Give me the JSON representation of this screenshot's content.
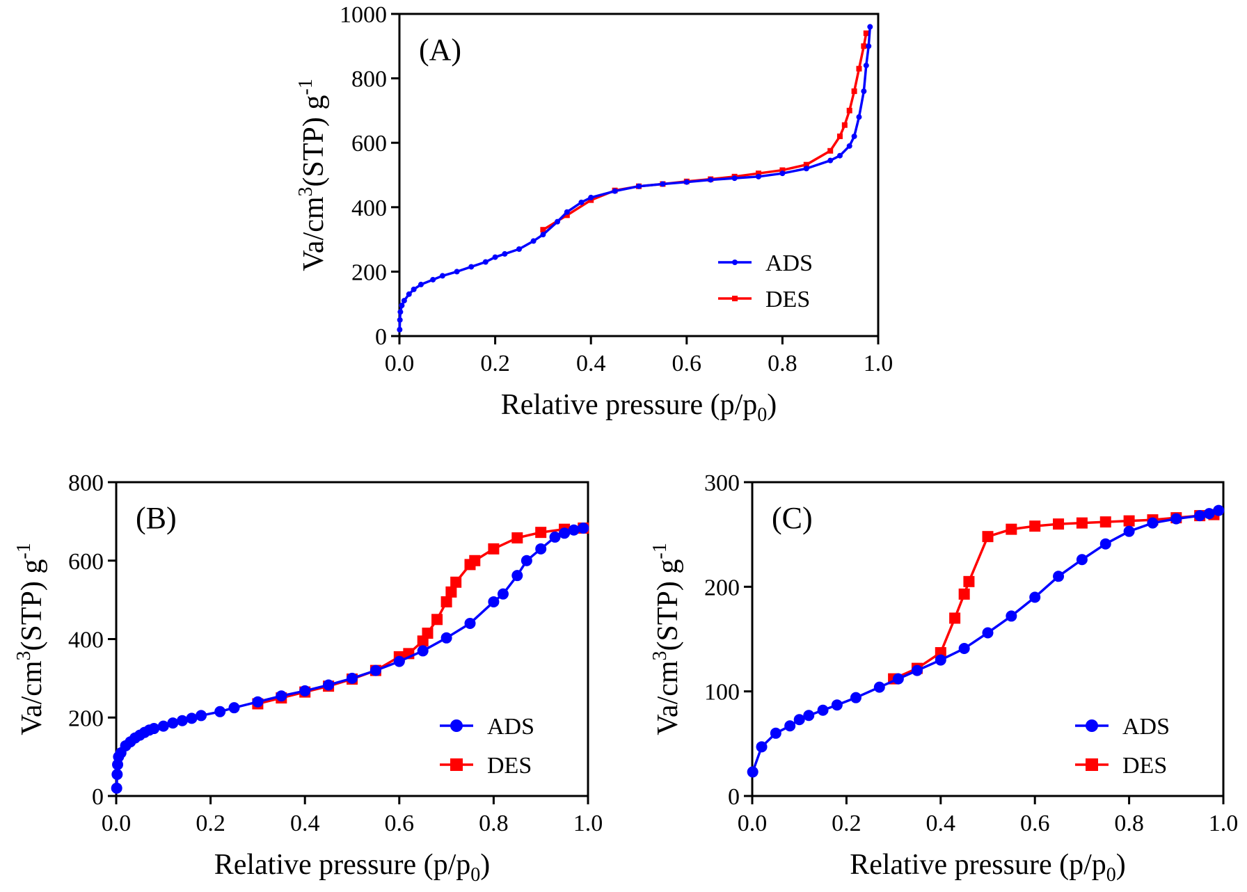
{
  "chart_data": [
    {
      "type": "line",
      "panel_label": "(A)",
      "xlabel": "Relative pressure (p/p",
      "xlabel_sub": "0",
      "xlabel_tail": ")",
      "ylabel": "Va/cm",
      "ylabel_sup": "3",
      "ylabel_mid": "(STP) g",
      "ylabel_sup2": "-1",
      "xlim": [
        0,
        1.0
      ],
      "ylim": [
        0,
        1000
      ],
      "xticks": [
        "0.0",
        "0.2",
        "0.4",
        "0.6",
        "0.8",
        "1.0"
      ],
      "yticks": [
        "0",
        "200",
        "400",
        "600",
        "800",
        "1000"
      ],
      "legend_position": "bottom-right",
      "series": [
        {
          "name": "ADS",
          "color": "#0000ff",
          "marker": "circle",
          "points": [
            [
              0.0005,
              20
            ],
            [
              0.001,
              50
            ],
            [
              0.002,
              75
            ],
            [
              0.005,
              95
            ],
            [
              0.01,
              110
            ],
            [
              0.02,
              130
            ],
            [
              0.03,
              145
            ],
            [
              0.045,
              160
            ],
            [
              0.07,
              175
            ],
            [
              0.09,
              187
            ],
            [
              0.12,
              200
            ],
            [
              0.15,
              215
            ],
            [
              0.18,
              230
            ],
            [
              0.2,
              245
            ],
            [
              0.22,
              255
            ],
            [
              0.25,
              270
            ],
            [
              0.28,
              295
            ],
            [
              0.3,
              315
            ],
            [
              0.33,
              355
            ],
            [
              0.35,
              385
            ],
            [
              0.38,
              415
            ],
            [
              0.4,
              430
            ],
            [
              0.45,
              450
            ],
            [
              0.5,
              465
            ],
            [
              0.55,
              472
            ],
            [
              0.6,
              478
            ],
            [
              0.65,
              485
            ],
            [
              0.7,
              490
            ],
            [
              0.75,
              495
            ],
            [
              0.8,
              505
            ],
            [
              0.85,
              520
            ],
            [
              0.9,
              545
            ],
            [
              0.92,
              560
            ],
            [
              0.94,
              590
            ],
            [
              0.95,
              620
            ],
            [
              0.96,
              680
            ],
            [
              0.97,
              760
            ],
            [
              0.975,
              840
            ],
            [
              0.98,
              900
            ],
            [
              0.983,
              960
            ]
          ]
        },
        {
          "name": "DES",
          "color": "#ff0000",
          "marker": "square",
          "points": [
            [
              0.3,
              330
            ],
            [
              0.35,
              375
            ],
            [
              0.4,
              422
            ],
            [
              0.45,
              452
            ],
            [
              0.5,
              465
            ],
            [
              0.55,
              472
            ],
            [
              0.6,
              480
            ],
            [
              0.65,
              487
            ],
            [
              0.7,
              495
            ],
            [
              0.75,
              505
            ],
            [
              0.8,
              515
            ],
            [
              0.85,
              532
            ],
            [
              0.9,
              575
            ],
            [
              0.92,
              620
            ],
            [
              0.93,
              655
            ],
            [
              0.94,
              700
            ],
            [
              0.95,
              760
            ],
            [
              0.96,
              830
            ],
            [
              0.97,
              900
            ],
            [
              0.975,
              940
            ]
          ]
        }
      ]
    },
    {
      "type": "line",
      "panel_label": "(B)",
      "xlabel": "Relative pressure (p/p",
      "xlabel_sub": "0",
      "xlabel_tail": ")",
      "ylabel": "Va/cm",
      "ylabel_sup": "3",
      "ylabel_mid": "(STP) g",
      "ylabel_sup2": "-1",
      "xlim": [
        0,
        1.0
      ],
      "ylim": [
        0,
        800
      ],
      "xticks": [
        "0.0",
        "0.2",
        "0.4",
        "0.6",
        "0.8",
        "1.0"
      ],
      "yticks": [
        "0",
        "200",
        "400",
        "600",
        "800"
      ],
      "legend_position": "bottom-right",
      "series": [
        {
          "name": "ADS",
          "color": "#0000ff",
          "marker": "circle",
          "points": [
            [
              0.001,
              20
            ],
            [
              0.002,
              55
            ],
            [
              0.003,
              80
            ],
            [
              0.005,
              100
            ],
            [
              0.01,
              110
            ],
            [
              0.02,
              128
            ],
            [
              0.03,
              138
            ],
            [
              0.04,
              148
            ],
            [
              0.05,
              155
            ],
            [
              0.06,
              162
            ],
            [
              0.07,
              168
            ],
            [
              0.08,
              172
            ],
            [
              0.1,
              178
            ],
            [
              0.12,
              186
            ],
            [
              0.14,
              192
            ],
            [
              0.16,
              198
            ],
            [
              0.18,
              205
            ],
            [
              0.22,
              215
            ],
            [
              0.25,
              225
            ],
            [
              0.3,
              240
            ],
            [
              0.35,
              255
            ],
            [
              0.4,
              268
            ],
            [
              0.45,
              283
            ],
            [
              0.5,
              300
            ],
            [
              0.55,
              320
            ],
            [
              0.6,
              343
            ],
            [
              0.65,
              370
            ],
            [
              0.7,
              403
            ],
            [
              0.75,
              440
            ],
            [
              0.8,
              495
            ],
            [
              0.82,
              515
            ],
            [
              0.85,
              562
            ],
            [
              0.87,
              600
            ],
            [
              0.9,
              630
            ],
            [
              0.93,
              660
            ],
            [
              0.95,
              670
            ],
            [
              0.97,
              678
            ],
            [
              0.99,
              683
            ]
          ]
        },
        {
          "name": "DES",
          "color": "#ff0000",
          "marker": "square",
          "points": [
            [
              0.3,
              235
            ],
            [
              0.35,
              250
            ],
            [
              0.4,
              265
            ],
            [
              0.45,
              280
            ],
            [
              0.5,
              298
            ],
            [
              0.55,
              320
            ],
            [
              0.6,
              355
            ],
            [
              0.62,
              363
            ],
            [
              0.65,
              395
            ],
            [
              0.66,
              415
            ],
            [
              0.68,
              450
            ],
            [
              0.7,
              495
            ],
            [
              0.71,
              520
            ],
            [
              0.72,
              545
            ],
            [
              0.75,
              590
            ],
            [
              0.76,
              600
            ],
            [
              0.8,
              630
            ],
            [
              0.85,
              658
            ],
            [
              0.9,
              672
            ],
            [
              0.95,
              680
            ],
            [
              0.99,
              683
            ]
          ]
        }
      ]
    },
    {
      "type": "line",
      "panel_label": "(C)",
      "xlabel": "Relative pressure (p/p",
      "xlabel_sub": "0",
      "xlabel_tail": ")",
      "ylabel": "Va/cm",
      "ylabel_sup": "3",
      "ylabel_mid": "(STP) g",
      "ylabel_sup2": "-1",
      "xlim": [
        0,
        1.0
      ],
      "ylim": [
        0,
        300
      ],
      "xticks": [
        "0.0",
        "0.2",
        "0.4",
        "0.6",
        "0.8",
        "1.0"
      ],
      "yticks": [
        "0",
        "100",
        "200",
        "300"
      ],
      "legend_position": "bottom-right",
      "series": [
        {
          "name": "ADS",
          "color": "#0000ff",
          "marker": "circle",
          "points": [
            [
              0.001,
              23
            ],
            [
              0.02,
              47
            ],
            [
              0.05,
              60
            ],
            [
              0.08,
              67
            ],
            [
              0.1,
              73
            ],
            [
              0.12,
              77
            ],
            [
              0.15,
              82
            ],
            [
              0.18,
              87
            ],
            [
              0.22,
              94
            ],
            [
              0.27,
              104
            ],
            [
              0.31,
              112
            ],
            [
              0.35,
              120
            ],
            [
              0.4,
              130
            ],
            [
              0.45,
              141
            ],
            [
              0.5,
              156
            ],
            [
              0.55,
              172
            ],
            [
              0.6,
              190
            ],
            [
              0.65,
              210
            ],
            [
              0.7,
              226
            ],
            [
              0.75,
              241
            ],
            [
              0.8,
              253
            ],
            [
              0.85,
              261
            ],
            [
              0.9,
              265
            ],
            [
              0.95,
              268
            ],
            [
              0.97,
              270
            ],
            [
              0.99,
              273
            ]
          ]
        },
        {
          "name": "DES",
          "color": "#ff0000",
          "marker": "square",
          "points": [
            [
              0.3,
              112
            ],
            [
              0.35,
              122
            ],
            [
              0.4,
              137
            ],
            [
              0.43,
              170
            ],
            [
              0.45,
              193
            ],
            [
              0.46,
              205
            ],
            [
              0.5,
              248
            ],
            [
              0.55,
              255
            ],
            [
              0.6,
              258
            ],
            [
              0.65,
              260
            ],
            [
              0.7,
              261
            ],
            [
              0.75,
              262
            ],
            [
              0.8,
              263
            ],
            [
              0.85,
              264
            ],
            [
              0.9,
              266
            ],
            [
              0.95,
              268
            ],
            [
              0.98,
              269
            ]
          ]
        }
      ]
    }
  ]
}
